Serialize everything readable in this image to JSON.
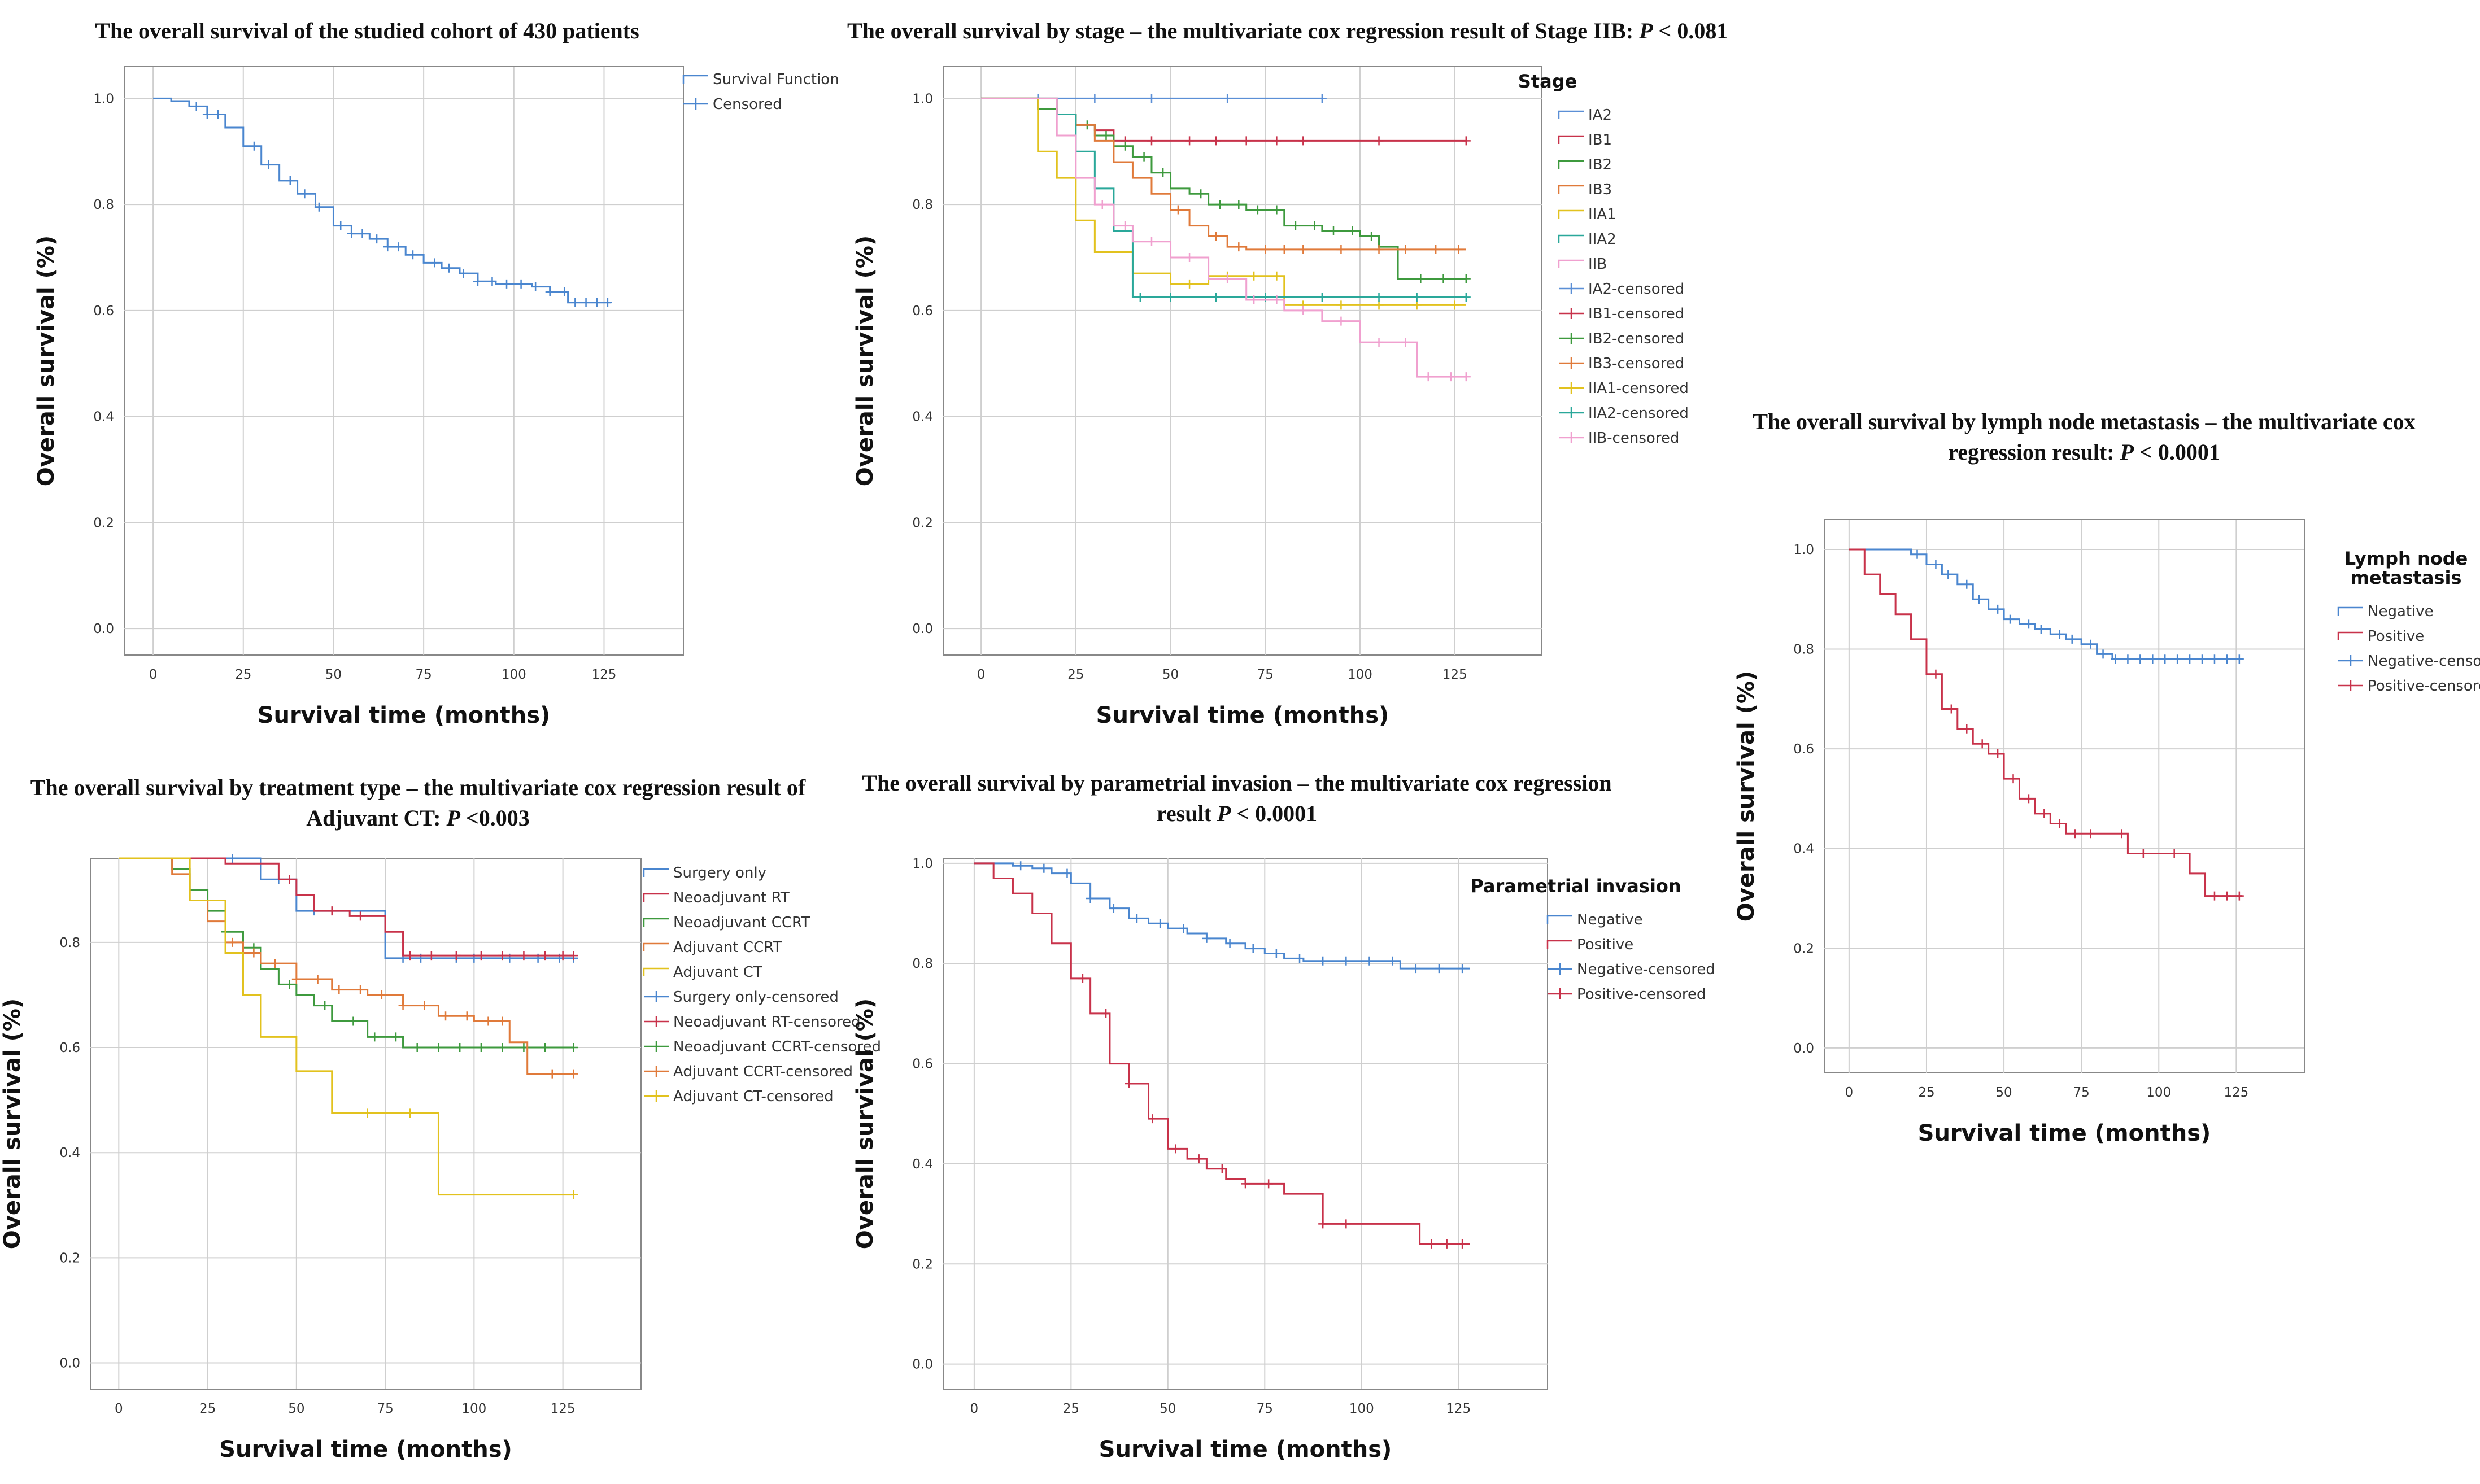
{
  "chart_data": [
    {
      "id": "p1",
      "type": "line",
      "step": true,
      "title": "The overall survival of the studied cohort of 430 patients",
      "title_italic": "",
      "title_suffix": "",
      "xlabel": "Survival time (months)",
      "ylabel": "Overall survival (%)",
      "xlim": [
        -8,
        147
      ],
      "ylim": [
        -0.05,
        1.06
      ],
      "xticks": [
        0,
        25,
        50,
        75,
        100,
        125
      ],
      "yticks": [
        0.0,
        0.2,
        0.4,
        0.6,
        0.8,
        1.0
      ],
      "grid": true,
      "legend_title": "",
      "legend_position": "top-right",
      "legend": [
        "Survival Function",
        "Censored"
      ],
      "series": [
        {
          "name": "Survival Function",
          "color": "#4a86cf",
          "x": [
            0,
            5,
            10,
            15,
            20,
            25,
            30,
            35,
            40,
            45,
            50,
            55,
            60,
            65,
            70,
            75,
            80,
            85,
            90,
            95,
            100,
            105,
            110,
            115,
            120,
            127
          ],
          "y": [
            1.0,
            0.995,
            0.985,
            0.97,
            0.945,
            0.91,
            0.875,
            0.845,
            0.82,
            0.795,
            0.76,
            0.745,
            0.735,
            0.72,
            0.705,
            0.69,
            0.68,
            0.67,
            0.655,
            0.65,
            0.65,
            0.645,
            0.635,
            0.615,
            0.615,
            0.615
          ],
          "censored": [
            12,
            15,
            18,
            28,
            32,
            38,
            42,
            46,
            52,
            55,
            58,
            62,
            65,
            68,
            72,
            78,
            82,
            86,
            90,
            94,
            98,
            102,
            106,
            110,
            114,
            117,
            120,
            123,
            126
          ]
        }
      ]
    },
    {
      "id": "p2",
      "type": "line",
      "step": true,
      "title": "The overall survival by stage – the multivariate cox regression result of Stage IIB: ",
      "title_italic": "P",
      "title_suffix": " < 0.081",
      "xlabel": "Survival time (months)",
      "ylabel": "Overall survival (%)",
      "xlim": [
        -10,
        148
      ],
      "ylim": [
        -0.05,
        1.06
      ],
      "xticks": [
        0,
        25,
        50,
        75,
        100,
        125
      ],
      "yticks": [
        0.0,
        0.2,
        0.4,
        0.6,
        0.8,
        1.0
      ],
      "grid": true,
      "legend_title": "Stage",
      "legend_position": "right",
      "legend": [
        "IA2",
        "IB1",
        "IB2",
        "IB3",
        "IIA1",
        "IIA2",
        "IIB",
        "IA2-censored",
        "IB1-censored",
        "IB2-censored",
        "IB3-censored",
        "IIA1-censored",
        "IIA2-censored",
        "IIB-censored"
      ],
      "series": [
        {
          "name": "IA2",
          "color": "#5b8fd6",
          "x": [
            0,
            90
          ],
          "y": [
            1.0,
            1.0
          ],
          "censored": [
            15,
            30,
            45,
            65,
            90
          ]
        },
        {
          "name": "IB1",
          "color": "#c8324a",
          "x": [
            0,
            15,
            20,
            25,
            30,
            35,
            128
          ],
          "y": [
            1.0,
            0.98,
            0.97,
            0.95,
            0.94,
            0.92,
            0.92
          ],
          "censored": [
            38,
            45,
            55,
            62,
            70,
            78,
            85,
            105,
            128
          ]
        },
        {
          "name": "IB2",
          "color": "#3e9a3e",
          "x": [
            0,
            15,
            20,
            25,
            30,
            35,
            40,
            45,
            50,
            55,
            60,
            70,
            80,
            90,
            100,
            105,
            110,
            128
          ],
          "y": [
            1.0,
            0.98,
            0.97,
            0.95,
            0.93,
            0.91,
            0.89,
            0.86,
            0.83,
            0.82,
            0.8,
            0.79,
            0.76,
            0.75,
            0.74,
            0.72,
            0.66,
            0.66
          ],
          "censored": [
            28,
            33,
            38,
            43,
            48,
            58,
            63,
            68,
            73,
            78,
            83,
            88,
            93,
            98,
            103,
            116,
            122,
            128
          ]
        },
        {
          "name": "IB3",
          "color": "#e07a3a",
          "x": [
            0,
            20,
            25,
            30,
            35,
            40,
            45,
            50,
            55,
            60,
            65,
            70,
            128
          ],
          "y": [
            1.0,
            0.97,
            0.95,
            0.92,
            0.88,
            0.85,
            0.82,
            0.79,
            0.76,
            0.74,
            0.72,
            0.715,
            0.715
          ],
          "censored": [
            52,
            62,
            68,
            75,
            80,
            85,
            95,
            105,
            112,
            120,
            126
          ]
        },
        {
          "name": "IIA1",
          "color": "#e2c21e",
          "x": [
            0,
            15,
            20,
            25,
            30,
            40,
            50,
            60,
            80,
            128
          ],
          "y": [
            1.0,
            0.9,
            0.85,
            0.77,
            0.71,
            0.67,
            0.65,
            0.665,
            0.61,
            0.61
          ],
          "censored": [
            55,
            65,
            72,
            78,
            85,
            95,
            105,
            115,
            125
          ]
        },
        {
          "name": "IIA2",
          "color": "#2aa89a",
          "x": [
            0,
            20,
            25,
            30,
            35,
            40,
            128
          ],
          "y": [
            1.0,
            0.97,
            0.9,
            0.83,
            0.75,
            0.625,
            0.625
          ],
          "censored": [
            42,
            50,
            62,
            75,
            90,
            105,
            115,
            128
          ]
        },
        {
          "name": "IIB",
          "color": "#f0a0cf",
          "x": [
            0,
            20,
            25,
            30,
            35,
            40,
            50,
            60,
            70,
            80,
            90,
            100,
            115,
            128
          ],
          "y": [
            1.0,
            0.93,
            0.85,
            0.8,
            0.76,
            0.73,
            0.7,
            0.66,
            0.62,
            0.6,
            0.58,
            0.54,
            0.475,
            0.475
          ],
          "censored": [
            32,
            38,
            45,
            55,
            65,
            72,
            78,
            85,
            95,
            105,
            112,
            118,
            124,
            128
          ]
        }
      ]
    },
    {
      "id": "p3",
      "type": "line",
      "step": true,
      "title": "The overall survival by lymph node metastasis – the multivariate cox regression result: ",
      "title_italic": "P",
      "title_suffix": " < 0.0001",
      "xlabel": "Survival time (months)",
      "ylabel": "Overall survival (%)",
      "xlim": [
        -8,
        147
      ],
      "ylim": [
        -0.05,
        1.06
      ],
      "xticks": [
        0,
        25,
        50,
        75,
        100,
        125
      ],
      "yticks": [
        0.0,
        0.2,
        0.4,
        0.6,
        0.8,
        1.0
      ],
      "grid": true,
      "legend_title": "Lymph node metastasis",
      "legend_position": "right",
      "legend": [
        "Negative",
        "Positive",
        "Negative-censored",
        "Positive-censored"
      ],
      "series": [
        {
          "name": "Negative",
          "color": "#4a86cf",
          "x": [
            0,
            20,
            25,
            30,
            35,
            40,
            45,
            50,
            55,
            60,
            65,
            70,
            75,
            80,
            85,
            127
          ],
          "y": [
            1.0,
            0.99,
            0.97,
            0.95,
            0.93,
            0.9,
            0.88,
            0.86,
            0.85,
            0.84,
            0.83,
            0.82,
            0.81,
            0.79,
            0.78,
            0.78
          ],
          "censored": [
            22,
            28,
            32,
            38,
            42,
            48,
            52,
            58,
            62,
            68,
            72,
            78,
            82,
            86,
            90,
            94,
            98,
            102,
            106,
            110,
            114,
            118,
            122,
            126
          ]
        },
        {
          "name": "Positive",
          "color": "#c8324a",
          "x": [
            0,
            5,
            10,
            15,
            20,
            25,
            30,
            35,
            40,
            45,
            50,
            55,
            60,
            65,
            70,
            80,
            90,
            100,
            110,
            115,
            127
          ],
          "y": [
            1.0,
            0.95,
            0.91,
            0.87,
            0.82,
            0.75,
            0.68,
            0.64,
            0.61,
            0.59,
            0.54,
            0.5,
            0.47,
            0.45,
            0.43,
            0.43,
            0.39,
            0.39,
            0.35,
            0.305,
            0.305
          ],
          "censored": [
            28,
            33,
            38,
            43,
            48,
            53,
            58,
            63,
            68,
            73,
            78,
            88,
            95,
            105,
            118,
            122,
            126
          ]
        }
      ]
    },
    {
      "id": "p4",
      "type": "line",
      "step": true,
      "title": "The overall survival by treatment type – the multivariate cox regression result of Adjuvant CT: ",
      "title_italic": "P",
      "title_suffix": " <0.003",
      "xlabel": "Survival time (months)",
      "ylabel": "Overall survival (%)",
      "xlim": [
        -8,
        147
      ],
      "ylim": [
        -0.05,
        0.96
      ],
      "xticks": [
        0,
        25,
        50,
        75,
        100,
        125
      ],
      "yticks": [
        0.0,
        0.2,
        0.4,
        0.6,
        0.8
      ],
      "grid": true,
      "legend_title": "",
      "legend_position": "top-right",
      "legend": [
        "Surgery only",
        "Neoadjuvant RT",
        "Neoadjuvant CCRT",
        "Adjuvant CCRT",
        "Adjuvant CT",
        "Surgery only-censored",
        "Neoadjuvant RT-censored",
        "Neoadjuvant CCRT-censored",
        "Adjuvant CCRT-censored",
        "Adjuvant CT-censored"
      ],
      "series": [
        {
          "name": "Surgery only",
          "color": "#4a86cf",
          "x": [
            0,
            30,
            40,
            50,
            60,
            75,
            128
          ],
          "y": [
            0.96,
            0.96,
            0.92,
            0.86,
            0.86,
            0.77,
            0.77
          ],
          "censored": [
            32,
            45,
            55,
            80,
            85,
            95,
            100,
            110,
            118,
            124,
            128
          ]
        },
        {
          "name": "Neoadjuvant RT",
          "color": "#c8324a",
          "x": [
            0,
            20,
            30,
            45,
            50,
            55,
            65,
            75,
            80,
            128
          ],
          "y": [
            0.96,
            0.96,
            0.95,
            0.92,
            0.89,
            0.86,
            0.85,
            0.82,
            0.775,
            0.775
          ],
          "censored": [
            48,
            60,
            68,
            82,
            88,
            95,
            102,
            108,
            114,
            120,
            125,
            128
          ]
        },
        {
          "name": "Neoadjuvant CCRT",
          "color": "#3e9a3e",
          "x": [
            0,
            15,
            20,
            25,
            30,
            35,
            40,
            45,
            50,
            55,
            60,
            70,
            80,
            128
          ],
          "y": [
            0.96,
            0.94,
            0.9,
            0.86,
            0.82,
            0.79,
            0.75,
            0.72,
            0.7,
            0.68,
            0.65,
            0.62,
            0.6,
            0.6
          ],
          "censored": [
            30,
            38,
            48,
            58,
            66,
            72,
            78,
            84,
            90,
            96,
            102,
            108,
            114,
            120,
            128
          ]
        },
        {
          "name": "Adjuvant CCRT",
          "color": "#e07a3a",
          "x": [
            0,
            15,
            20,
            25,
            30,
            35,
            40,
            50,
            60,
            70,
            80,
            90,
            100,
            110,
            115,
            128
          ],
          "y": [
            0.96,
            0.93,
            0.88,
            0.84,
            0.8,
            0.78,
            0.76,
            0.73,
            0.71,
            0.7,
            0.68,
            0.66,
            0.65,
            0.61,
            0.55,
            0.55
          ],
          "censored": [
            32,
            38,
            44,
            50,
            56,
            62,
            68,
            74,
            80,
            86,
            92,
            98,
            104,
            108,
            122,
            128
          ]
        },
        {
          "name": "Adjuvant CT",
          "color": "#e2c21e",
          "x": [
            0,
            20,
            30,
            35,
            40,
            50,
            60,
            70,
            90,
            95,
            128
          ],
          "y": [
            0.96,
            0.88,
            0.78,
            0.7,
            0.62,
            0.555,
            0.475,
            0.475,
            0.32,
            0.32,
            0.32
          ],
          "censored": [
            70,
            82,
            128
          ]
        }
      ]
    },
    {
      "id": "p5",
      "type": "line",
      "step": true,
      "title": "The overall survival by parametrial invasion – the multivariate cox regression result ",
      "title_italic": "P",
      "title_suffix": " < 0.0001",
      "xlabel": "Survival time (months)",
      "ylabel": "Overall survival (%)",
      "xlim": [
        -8,
        148
      ],
      "ylim": [
        -0.05,
        1.01
      ],
      "xticks": [
        0,
        25,
        50,
        75,
        100,
        125
      ],
      "yticks": [
        0.0,
        0.2,
        0.4,
        0.6,
        0.8,
        1.0
      ],
      "grid": true,
      "legend_title": "Parametrial invasion",
      "legend_position": "right",
      "legend": [
        "Negative",
        "Positive",
        "Negative-censored",
        "Positive-censored"
      ],
      "series": [
        {
          "name": "Negative",
          "color": "#4a86cf",
          "x": [
            0,
            10,
            15,
            20,
            25,
            30,
            35,
            40,
            45,
            50,
            55,
            60,
            65,
            70,
            75,
            80,
            85,
            90,
            100,
            110,
            128
          ],
          "y": [
            1.0,
            0.995,
            0.99,
            0.98,
            0.96,
            0.93,
            0.91,
            0.89,
            0.88,
            0.87,
            0.86,
            0.85,
            0.84,
            0.83,
            0.82,
            0.81,
            0.805,
            0.805,
            0.805,
            0.79,
            0.79
          ],
          "censored": [
            12,
            18,
            24,
            30,
            36,
            42,
            48,
            54,
            60,
            66,
            72,
            78,
            84,
            90,
            96,
            102,
            108,
            114,
            120,
            126
          ]
        },
        {
          "name": "Positive",
          "color": "#c8324a",
          "x": [
            0,
            5,
            10,
            15,
            20,
            25,
            30,
            35,
            40,
            45,
            50,
            55,
            60,
            65,
            70,
            80,
            90,
            100,
            110,
            115,
            128
          ],
          "y": [
            1.0,
            0.97,
            0.94,
            0.9,
            0.84,
            0.77,
            0.7,
            0.6,
            0.56,
            0.49,
            0.43,
            0.41,
            0.39,
            0.37,
            0.36,
            0.34,
            0.28,
            0.28,
            0.28,
            0.24,
            0.24
          ],
          "censored": [
            28,
            34,
            40,
            46,
            52,
            58,
            64,
            70,
            76,
            90,
            96,
            118,
            122,
            126
          ]
        }
      ]
    }
  ]
}
